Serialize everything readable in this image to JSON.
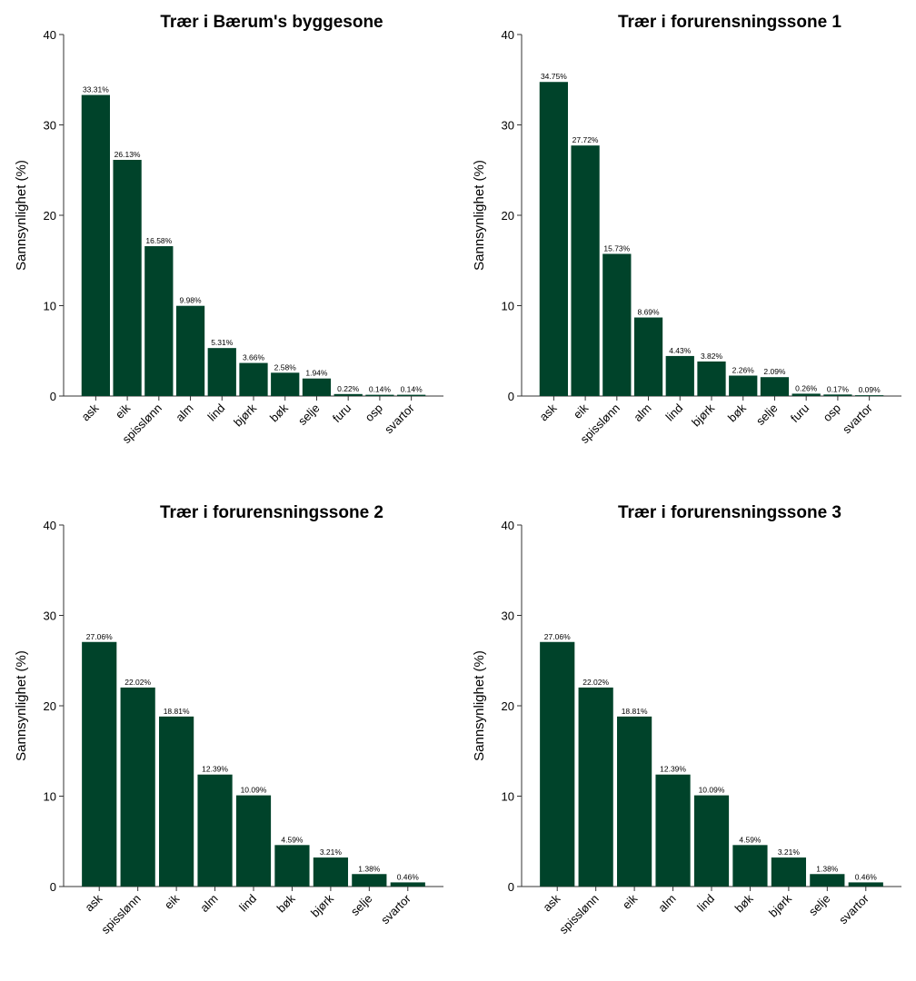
{
  "chart_data": [
    {
      "type": "bar",
      "title": "Trær i Bærum's byggesone",
      "ylabel": "Sannsynlighet (%)",
      "xlabel": "",
      "ylim": [
        0,
        40
      ],
      "yticks": [
        0,
        10,
        20,
        30,
        40
      ],
      "bar_color": "#00432a",
      "categories": [
        "ask",
        "eik",
        "spisslønn",
        "alm",
        "lind",
        "bjørk",
        "bøk",
        "selje",
        "furu",
        "osp",
        "svartor"
      ],
      "values": [
        33.31,
        26.13,
        16.58,
        9.98,
        5.31,
        3.66,
        2.58,
        1.94,
        0.22,
        0.14,
        0.14
      ],
      "labels": [
        "33.31%",
        "26.13%",
        "16.58%",
        "9.98%",
        "5.31%",
        "3.66%",
        "2.58%",
        "1.94%",
        "0.22%",
        "0.14%",
        "0.14%"
      ]
    },
    {
      "type": "bar",
      "title": "Trær i forurensningssone 1",
      "ylabel": "Sannsynlighet (%)",
      "xlabel": "",
      "ylim": [
        0,
        40
      ],
      "yticks": [
        0,
        10,
        20,
        30,
        40
      ],
      "bar_color": "#00432a",
      "categories": [
        "ask",
        "eik",
        "spisslønn",
        "alm",
        "lind",
        "bjørk",
        "bøk",
        "selje",
        "furu",
        "osp",
        "svartor"
      ],
      "values": [
        34.75,
        27.72,
        15.73,
        8.69,
        4.43,
        3.82,
        2.26,
        2.09,
        0.26,
        0.17,
        0.09
      ],
      "labels": [
        "34.75%",
        "27.72%",
        "15.73%",
        "8.69%",
        "4.43%",
        "3.82%",
        "2.26%",
        "2.09%",
        "0.26%",
        "0.17%",
        "0.09%"
      ]
    },
    {
      "type": "bar",
      "title": "Trær i forurensningssone 2",
      "ylabel": "Sannsynlighet (%)",
      "xlabel": "",
      "ylim": [
        0,
        40
      ],
      "yticks": [
        0,
        10,
        20,
        30,
        40
      ],
      "bar_color": "#00432a",
      "categories": [
        "ask",
        "spisslønn",
        "eik",
        "alm",
        "lind",
        "bøk",
        "bjørk",
        "selje",
        "svartor"
      ],
      "values": [
        27.06,
        22.02,
        18.81,
        12.39,
        10.09,
        4.59,
        3.21,
        1.38,
        0.46
      ],
      "labels": [
        "27.06%",
        "22.02%",
        "18.81%",
        "12.39%",
        "10.09%",
        "4.59%",
        "3.21%",
        "1.38%",
        "0.46%"
      ]
    },
    {
      "type": "bar",
      "title": "Trær i forurensningssone 3",
      "ylabel": "Sannsynlighet (%)",
      "xlabel": "",
      "ylim": [
        0,
        40
      ],
      "yticks": [
        0,
        10,
        20,
        30,
        40
      ],
      "bar_color": "#00432a",
      "categories": [
        "ask",
        "spisslønn",
        "eik",
        "alm",
        "lind",
        "bøk",
        "bjørk",
        "selje",
        "svartor"
      ],
      "values": [
        27.06,
        22.02,
        18.81,
        12.39,
        10.09,
        4.59,
        3.21,
        1.38,
        0.46
      ],
      "labels": [
        "27.06%",
        "22.02%",
        "18.81%",
        "12.39%",
        "10.09%",
        "4.59%",
        "3.21%",
        "1.38%",
        "0.46%"
      ]
    }
  ]
}
